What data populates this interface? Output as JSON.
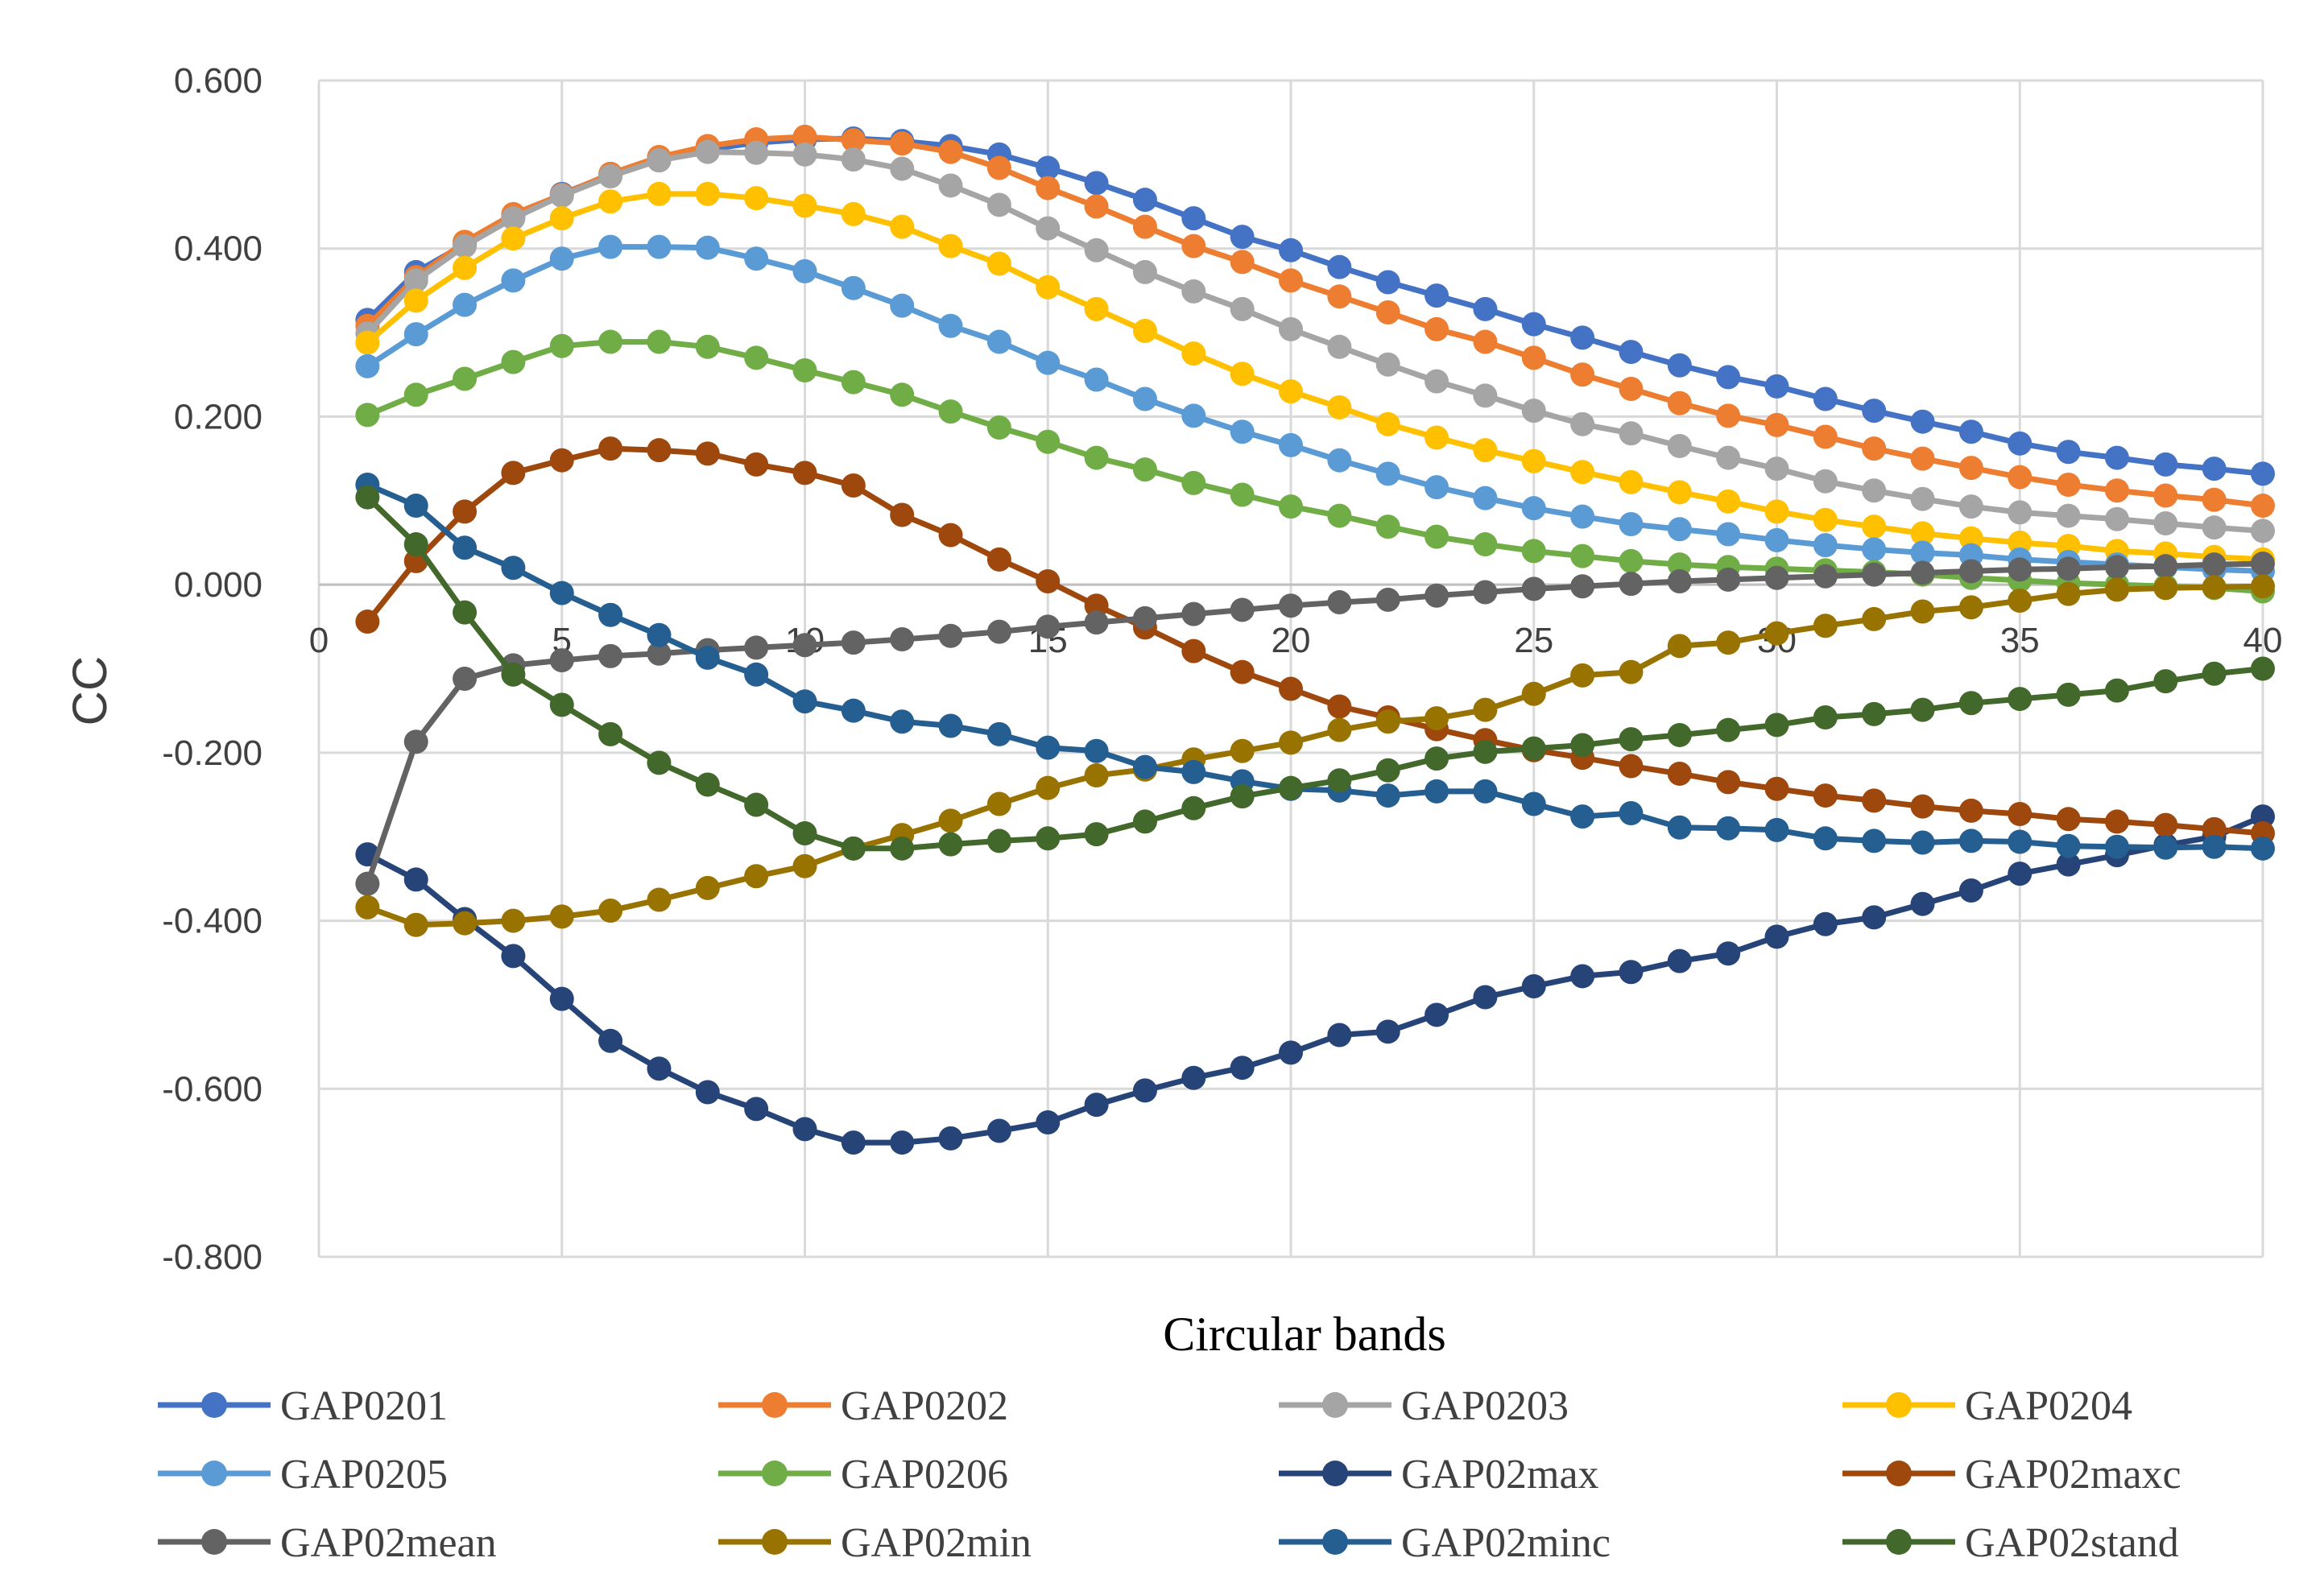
{
  "chart_data": {
    "type": "line",
    "title": "",
    "xlabel": "Circular bands",
    "ylabel": "CC",
    "xlim": [
      0,
      40
    ],
    "ylim": [
      -0.8,
      0.6
    ],
    "xticks": [
      0,
      5,
      10,
      15,
      20,
      25,
      30,
      35,
      40
    ],
    "xtick_labels": [
      "0",
      "5",
      "10",
      "15",
      "20",
      "25",
      "30",
      "35",
      "40"
    ],
    "yticks": [
      0.6,
      0.4,
      0.2,
      0.0,
      -0.2,
      -0.4,
      -0.6,
      -0.8
    ],
    "ytick_labels": [
      "0.600",
      "0.400",
      "0.200",
      "0.000",
      "-0.200",
      "-0.400",
      "-0.600",
      "-0.800"
    ],
    "grid": true,
    "legend_position": "bottom",
    "x": [
      1,
      2,
      3,
      4,
      5,
      6,
      7,
      8,
      9,
      10,
      11,
      12,
      13,
      14,
      15,
      16,
      17,
      18,
      19,
      20,
      21,
      22,
      23,
      24,
      25,
      26,
      27,
      28,
      29,
      30,
      31,
      32,
      33,
      34,
      35,
      36,
      37,
      38,
      39,
      40
    ],
    "series": [
      {
        "name": "GAP0201",
        "color": "#4472C4",
        "values": [
          0.315,
          0.372,
          0.405,
          0.438,
          0.465,
          0.488,
          0.505,
          0.518,
          0.526,
          0.53,
          0.531,
          0.528,
          0.522,
          0.512,
          0.496,
          0.478,
          0.458,
          0.436,
          0.414,
          0.398,
          0.378,
          0.36,
          0.344,
          0.328,
          0.31,
          0.294,
          0.277,
          0.261,
          0.247,
          0.236,
          0.221,
          0.207,
          0.194,
          0.182,
          0.168,
          0.158,
          0.151,
          0.143,
          0.138,
          0.132
        ]
      },
      {
        "name": "GAP0202",
        "color": "#ED7D31",
        "values": [
          0.308,
          0.366,
          0.408,
          0.441,
          0.464,
          0.489,
          0.509,
          0.522,
          0.53,
          0.533,
          0.529,
          0.525,
          0.515,
          0.496,
          0.472,
          0.45,
          0.426,
          0.403,
          0.384,
          0.362,
          0.343,
          0.324,
          0.304,
          0.289,
          0.27,
          0.25,
          0.233,
          0.216,
          0.201,
          0.19,
          0.176,
          0.162,
          0.15,
          0.139,
          0.128,
          0.119,
          0.112,
          0.106,
          0.101,
          0.094
        ]
      },
      {
        "name": "GAP0203",
        "color": "#A5A5A5",
        "values": [
          0.299,
          0.362,
          0.403,
          0.436,
          0.463,
          0.486,
          0.505,
          0.515,
          0.514,
          0.512,
          0.506,
          0.495,
          0.475,
          0.452,
          0.424,
          0.398,
          0.372,
          0.349,
          0.328,
          0.304,
          0.283,
          0.262,
          0.242,
          0.225,
          0.207,
          0.191,
          0.18,
          0.165,
          0.151,
          0.138,
          0.123,
          0.112,
          0.102,
          0.093,
          0.086,
          0.082,
          0.078,
          0.073,
          0.068,
          0.064
        ]
      },
      {
        "name": "GAP0204",
        "color": "#FFC000",
        "values": [
          0.288,
          0.338,
          0.377,
          0.412,
          0.436,
          0.456,
          0.465,
          0.465,
          0.46,
          0.451,
          0.441,
          0.426,
          0.403,
          0.382,
          0.354,
          0.328,
          0.302,
          0.275,
          0.251,
          0.23,
          0.211,
          0.191,
          0.175,
          0.16,
          0.147,
          0.134,
          0.122,
          0.11,
          0.099,
          0.087,
          0.077,
          0.069,
          0.061,
          0.055,
          0.05,
          0.046,
          0.04,
          0.037,
          0.033,
          0.03
        ]
      },
      {
        "name": "GAP0205",
        "color": "#5B9BD5",
        "values": [
          0.26,
          0.298,
          0.333,
          0.362,
          0.388,
          0.402,
          0.402,
          0.401,
          0.388,
          0.373,
          0.353,
          0.332,
          0.308,
          0.289,
          0.264,
          0.244,
          0.221,
          0.201,
          0.182,
          0.166,
          0.148,
          0.132,
          0.116,
          0.103,
          0.091,
          0.081,
          0.072,
          0.066,
          0.06,
          0.053,
          0.047,
          0.042,
          0.038,
          0.035,
          0.03,
          0.027,
          0.024,
          0.021,
          0.018,
          0.016
        ]
      },
      {
        "name": "GAP0206",
        "color": "#70AD47",
        "values": [
          0.202,
          0.226,
          0.245,
          0.265,
          0.284,
          0.289,
          0.289,
          0.283,
          0.27,
          0.255,
          0.241,
          0.226,
          0.206,
          0.187,
          0.17,
          0.151,
          0.137,
          0.121,
          0.107,
          0.093,
          0.082,
          0.069,
          0.057,
          0.048,
          0.04,
          0.034,
          0.028,
          0.024,
          0.021,
          0.019,
          0.017,
          0.015,
          0.012,
          0.008,
          0.005,
          0.002,
          0.0,
          -0.002,
          -0.004,
          -0.008
        ]
      },
      {
        "name": "GAP02max",
        "color": "#264478",
        "values": [
          -0.321,
          -0.351,
          -0.398,
          -0.442,
          -0.493,
          -0.543,
          -0.576,
          -0.604,
          -0.624,
          -0.648,
          -0.664,
          -0.664,
          -0.659,
          -0.65,
          -0.64,
          -0.619,
          -0.602,
          -0.587,
          -0.575,
          -0.557,
          -0.536,
          -0.532,
          -0.512,
          -0.491,
          -0.478,
          -0.466,
          -0.461,
          -0.448,
          -0.439,
          -0.419,
          -0.404,
          -0.396,
          -0.38,
          -0.364,
          -0.344,
          -0.333,
          -0.322,
          -0.31,
          -0.3,
          -0.276
        ]
      },
      {
        "name": "GAP02maxc",
        "color": "#9E480E",
        "values": [
          -0.044,
          0.028,
          0.087,
          0.133,
          0.148,
          0.162,
          0.16,
          0.156,
          0.143,
          0.133,
          0.118,
          0.083,
          0.059,
          0.03,
          0.004,
          -0.025,
          -0.051,
          -0.079,
          -0.104,
          -0.124,
          -0.145,
          -0.158,
          -0.172,
          -0.185,
          -0.197,
          -0.206,
          -0.216,
          -0.225,
          -0.235,
          -0.243,
          -0.251,
          -0.257,
          -0.264,
          -0.269,
          -0.273,
          -0.279,
          -0.282,
          -0.286,
          -0.291,
          -0.296
        ]
      },
      {
        "name": "GAP02mean",
        "color": "#636363",
        "values": [
          -0.356,
          -0.187,
          -0.112,
          -0.096,
          -0.09,
          -0.085,
          -0.082,
          -0.078,
          -0.075,
          -0.072,
          -0.069,
          -0.065,
          -0.061,
          -0.056,
          -0.05,
          -0.045,
          -0.04,
          -0.035,
          -0.03,
          -0.025,
          -0.021,
          -0.018,
          -0.013,
          -0.009,
          -0.005,
          -0.002,
          0.001,
          0.004,
          0.006,
          0.008,
          0.01,
          0.012,
          0.014,
          0.016,
          0.018,
          0.019,
          0.021,
          0.022,
          0.024,
          0.025
        ]
      },
      {
        "name": "GAP02min",
        "color": "#997300",
        "values": [
          -0.384,
          -0.405,
          -0.403,
          -0.4,
          -0.395,
          -0.388,
          -0.375,
          -0.361,
          -0.347,
          -0.335,
          -0.314,
          -0.298,
          -0.281,
          -0.261,
          -0.242,
          -0.227,
          -0.22,
          -0.208,
          -0.198,
          -0.188,
          -0.173,
          -0.163,
          -0.159,
          -0.149,
          -0.13,
          -0.108,
          -0.104,
          -0.073,
          -0.069,
          -0.058,
          -0.049,
          -0.041,
          -0.032,
          -0.027,
          -0.019,
          -0.011,
          -0.006,
          -0.004,
          -0.003,
          -0.002
        ]
      },
      {
        "name": "GAP02minc",
        "color": "#255E91",
        "values": [
          0.119,
          0.094,
          0.044,
          0.02,
          -0.01,
          -0.036,
          -0.06,
          -0.087,
          -0.107,
          -0.139,
          -0.15,
          -0.163,
          -0.168,
          -0.178,
          -0.194,
          -0.198,
          -0.217,
          -0.223,
          -0.234,
          -0.243,
          -0.245,
          -0.251,
          -0.246,
          -0.246,
          -0.261,
          -0.276,
          -0.272,
          -0.289,
          -0.29,
          -0.292,
          -0.302,
          -0.305,
          -0.307,
          -0.305,
          -0.306,
          -0.311,
          -0.312,
          -0.313,
          -0.312,
          -0.314
        ]
      },
      {
        "name": "GAP02stand",
        "color": "#43682B",
        "values": [
          0.104,
          0.048,
          -0.033,
          -0.107,
          -0.143,
          -0.178,
          -0.212,
          -0.238,
          -0.262,
          -0.296,
          -0.314,
          -0.314,
          -0.309,
          -0.305,
          -0.302,
          -0.297,
          -0.282,
          -0.266,
          -0.252,
          -0.242,
          -0.233,
          -0.221,
          -0.207,
          -0.199,
          -0.195,
          -0.191,
          -0.184,
          -0.179,
          -0.173,
          -0.167,
          -0.158,
          -0.154,
          -0.149,
          -0.141,
          -0.136,
          -0.131,
          -0.126,
          -0.115,
          -0.106,
          -0.1
        ]
      }
    ]
  }
}
